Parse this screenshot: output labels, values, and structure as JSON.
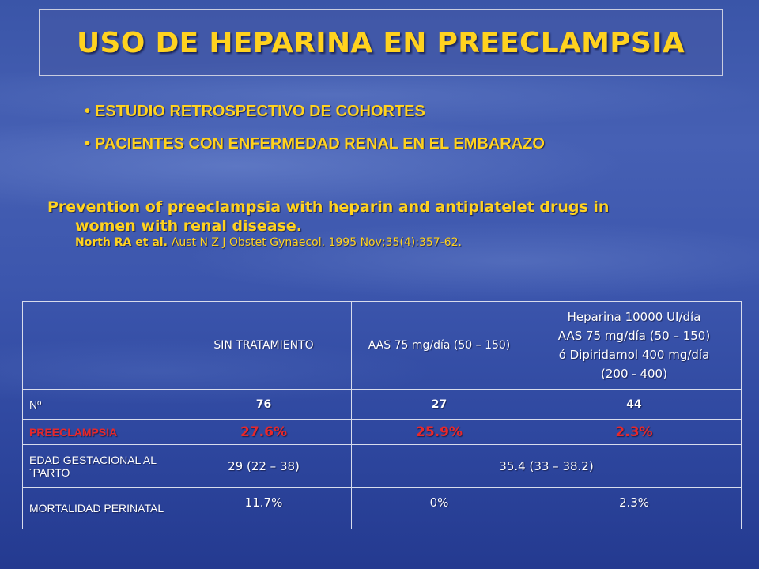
{
  "title": "USO DE HEPARINA EN PREECLAMPSIA",
  "bullets": [
    "ESTUDIO RETROSPECTIVO DE COHORTES",
    "PACIENTES CON ENFERMEDAD RENAL EN EL EMBARAZO"
  ],
  "bullet_symbol": "•",
  "reference": {
    "line1": "Prevention of preeclampsia with heparin and antiplatelet drugs in",
    "line2": "women with renal disease.",
    "authors": "North RA et al.",
    "journal": "Aust N Z J Obstet Gynaecol. 1995 Nov;35(4):357-62."
  },
  "table": {
    "headers": {
      "col1": "SIN TRATAMIENTO",
      "col2": "AAS 75 mg/día  (50 – 150)",
      "col3_lines": [
        "Heparina 10000  UI/día",
        "AAS 75 mg/día (50 – 150)",
        "ó Dipiridamol 400 mg/día",
        "(200 - 400)"
      ]
    },
    "rows": {
      "n": {
        "label": "Nº",
        "values": [
          "76",
          "27",
          "44"
        ]
      },
      "preeclampsia": {
        "label": "PREECLAMPSIA",
        "values": [
          "27.6%",
          "25.9%",
          "2.3%"
        ]
      },
      "edad": {
        "label": "EDAD GESTACIONAL AL ´PARTO",
        "value1": "29 (22 – 38)",
        "value_merged": "35.4 (33 – 38.2)"
      },
      "mortalidad": {
        "label": "MORTALIDAD PERINATAL",
        "values": [
          "11.7%",
          "0%",
          "2.3%"
        ]
      }
    }
  },
  "colors": {
    "title": "#ffd21f",
    "highlight_red": "#e8282a",
    "text": "#ffffff"
  }
}
